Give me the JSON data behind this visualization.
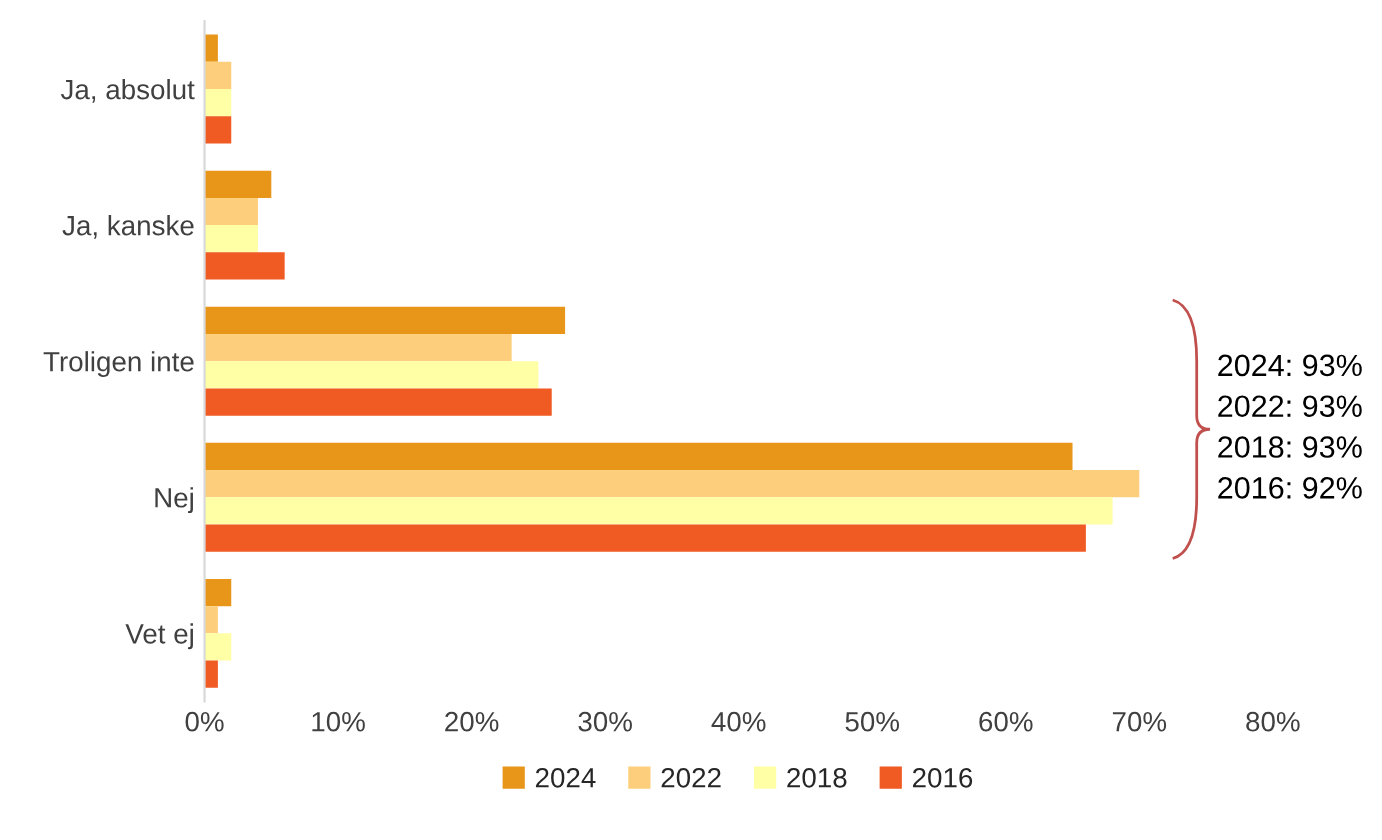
{
  "chart_data": {
    "type": "bar",
    "orientation": "horizontal",
    "categories": [
      "Ja, absolut",
      "Ja, kanske",
      "Troligen inte",
      "Nej",
      "Vet ej"
    ],
    "series": [
      {
        "name": "2024",
        "color": "#e8961a",
        "values": [
          1,
          5,
          27,
          65,
          2
        ]
      },
      {
        "name": "2022",
        "color": "#fdcf7c",
        "values": [
          2,
          4,
          23,
          70,
          1
        ]
      },
      {
        "name": "2018",
        "color": "#ffffa6",
        "values": [
          2,
          4,
          25,
          68,
          2
        ]
      },
      {
        "name": "2016",
        "color": "#f05a23",
        "values": [
          2,
          6,
          26,
          66,
          1
        ]
      }
    ],
    "xlim": [
      0,
      80
    ],
    "xticks": [
      {
        "value": 0,
        "label": "0%"
      },
      {
        "value": 10,
        "label": "10%"
      },
      {
        "value": 20,
        "label": "20%"
      },
      {
        "value": 30,
        "label": "30%"
      },
      {
        "value": 40,
        "label": "40%"
      },
      {
        "value": 50,
        "label": "50%"
      },
      {
        "value": 60,
        "label": "60%"
      },
      {
        "value": 70,
        "label": "70%"
      },
      {
        "value": 80,
        "label": "80%"
      }
    ],
    "annotations": [
      "2024: 93%",
      "2022: 93%",
      "2018: 93%",
      "2016: 92%"
    ],
    "legend": "bottom",
    "grid": false
  }
}
